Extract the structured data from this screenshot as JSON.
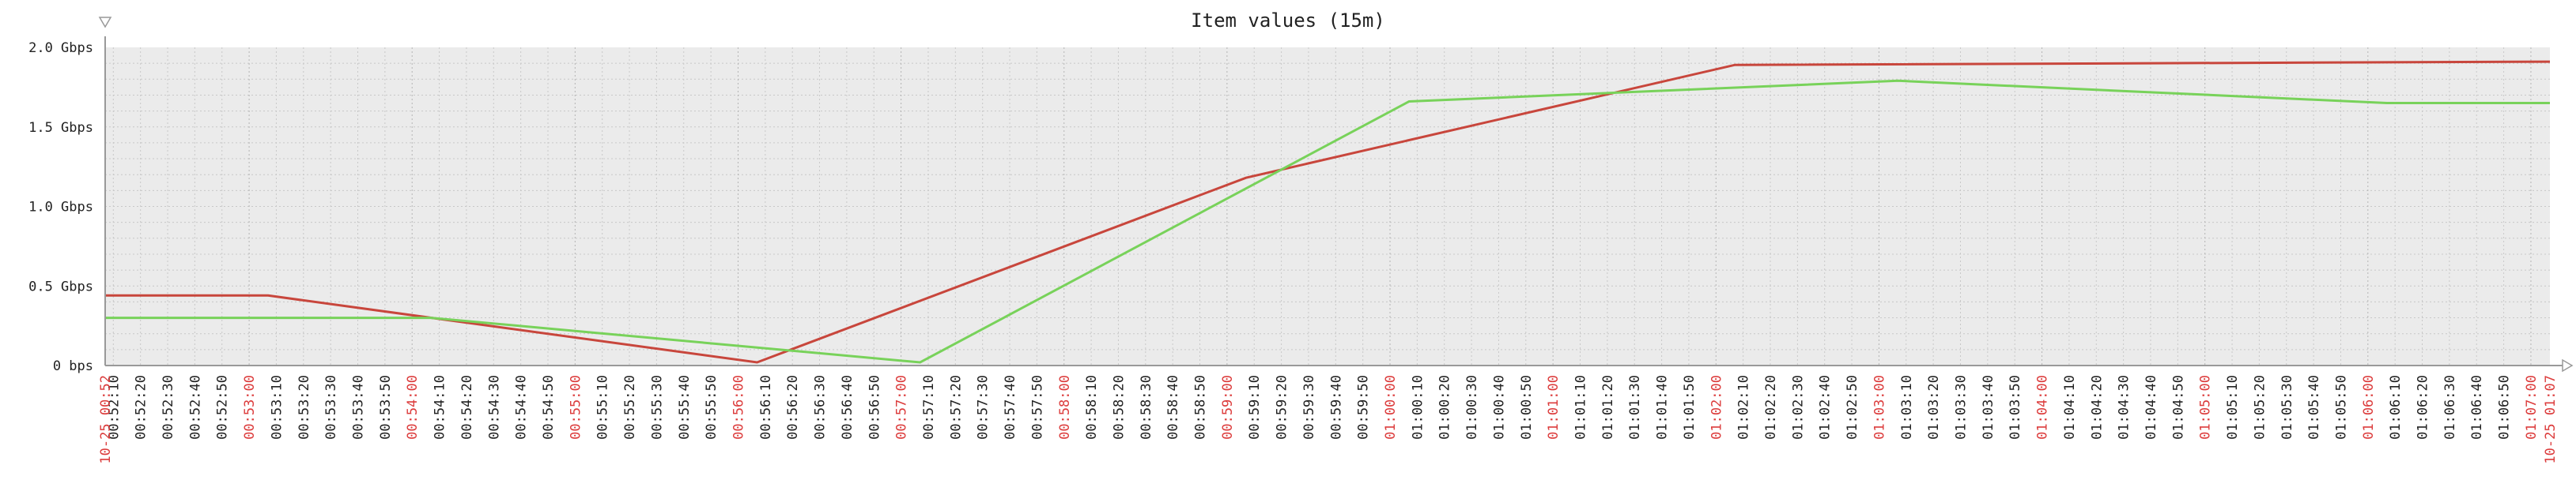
{
  "chart_data": {
    "type": "line",
    "title": "Item values (15m)",
    "xlabel": "",
    "ylabel": "",
    "y_unit": "Gbps",
    "ylim": [
      0,
      2.0
    ],
    "y_ticks": [
      {
        "value": 0,
        "label": "0 bps"
      },
      {
        "value": 0.5,
        "label": "0.5 Gbps"
      },
      {
        "value": 1.0,
        "label": "1.0 Gbps"
      },
      {
        "value": 1.5,
        "label": "1.5 Gbps"
      },
      {
        "value": 2.0,
        "label": "2.0 Gbps"
      }
    ],
    "x_range": [
      "00:52:07",
      "01:07:07"
    ],
    "x_start_label": "10-25 00:52",
    "x_end_label": "10-25 01:07",
    "grid": true,
    "colors": {
      "background": "#ebebeb",
      "grid": "#c8c8c8",
      "axis": "#999999",
      "minor_label": "#222222",
      "major_label": "#dc3c3c",
      "series_red": "#c8463c",
      "series_green": "#78d25a"
    },
    "series": [
      {
        "color": "#c8463c",
        "x": [
          "00:52:07",
          "00:53:07",
          "00:56:07",
          "00:59:07",
          "01:02:07",
          "01:07:07"
        ],
        "values": [
          0.44,
          0.44,
          0.02,
          1.18,
          1.89,
          1.91
        ]
      },
      {
        "color": "#78d25a",
        "x": [
          "00:52:07",
          "00:54:07",
          "00:57:07",
          "01:00:07",
          "01:03:07",
          "01:06:07",
          "01:07:07"
        ],
        "values": [
          0.3,
          0.3,
          0.02,
          1.66,
          1.79,
          1.65,
          1.65
        ]
      }
    ]
  }
}
